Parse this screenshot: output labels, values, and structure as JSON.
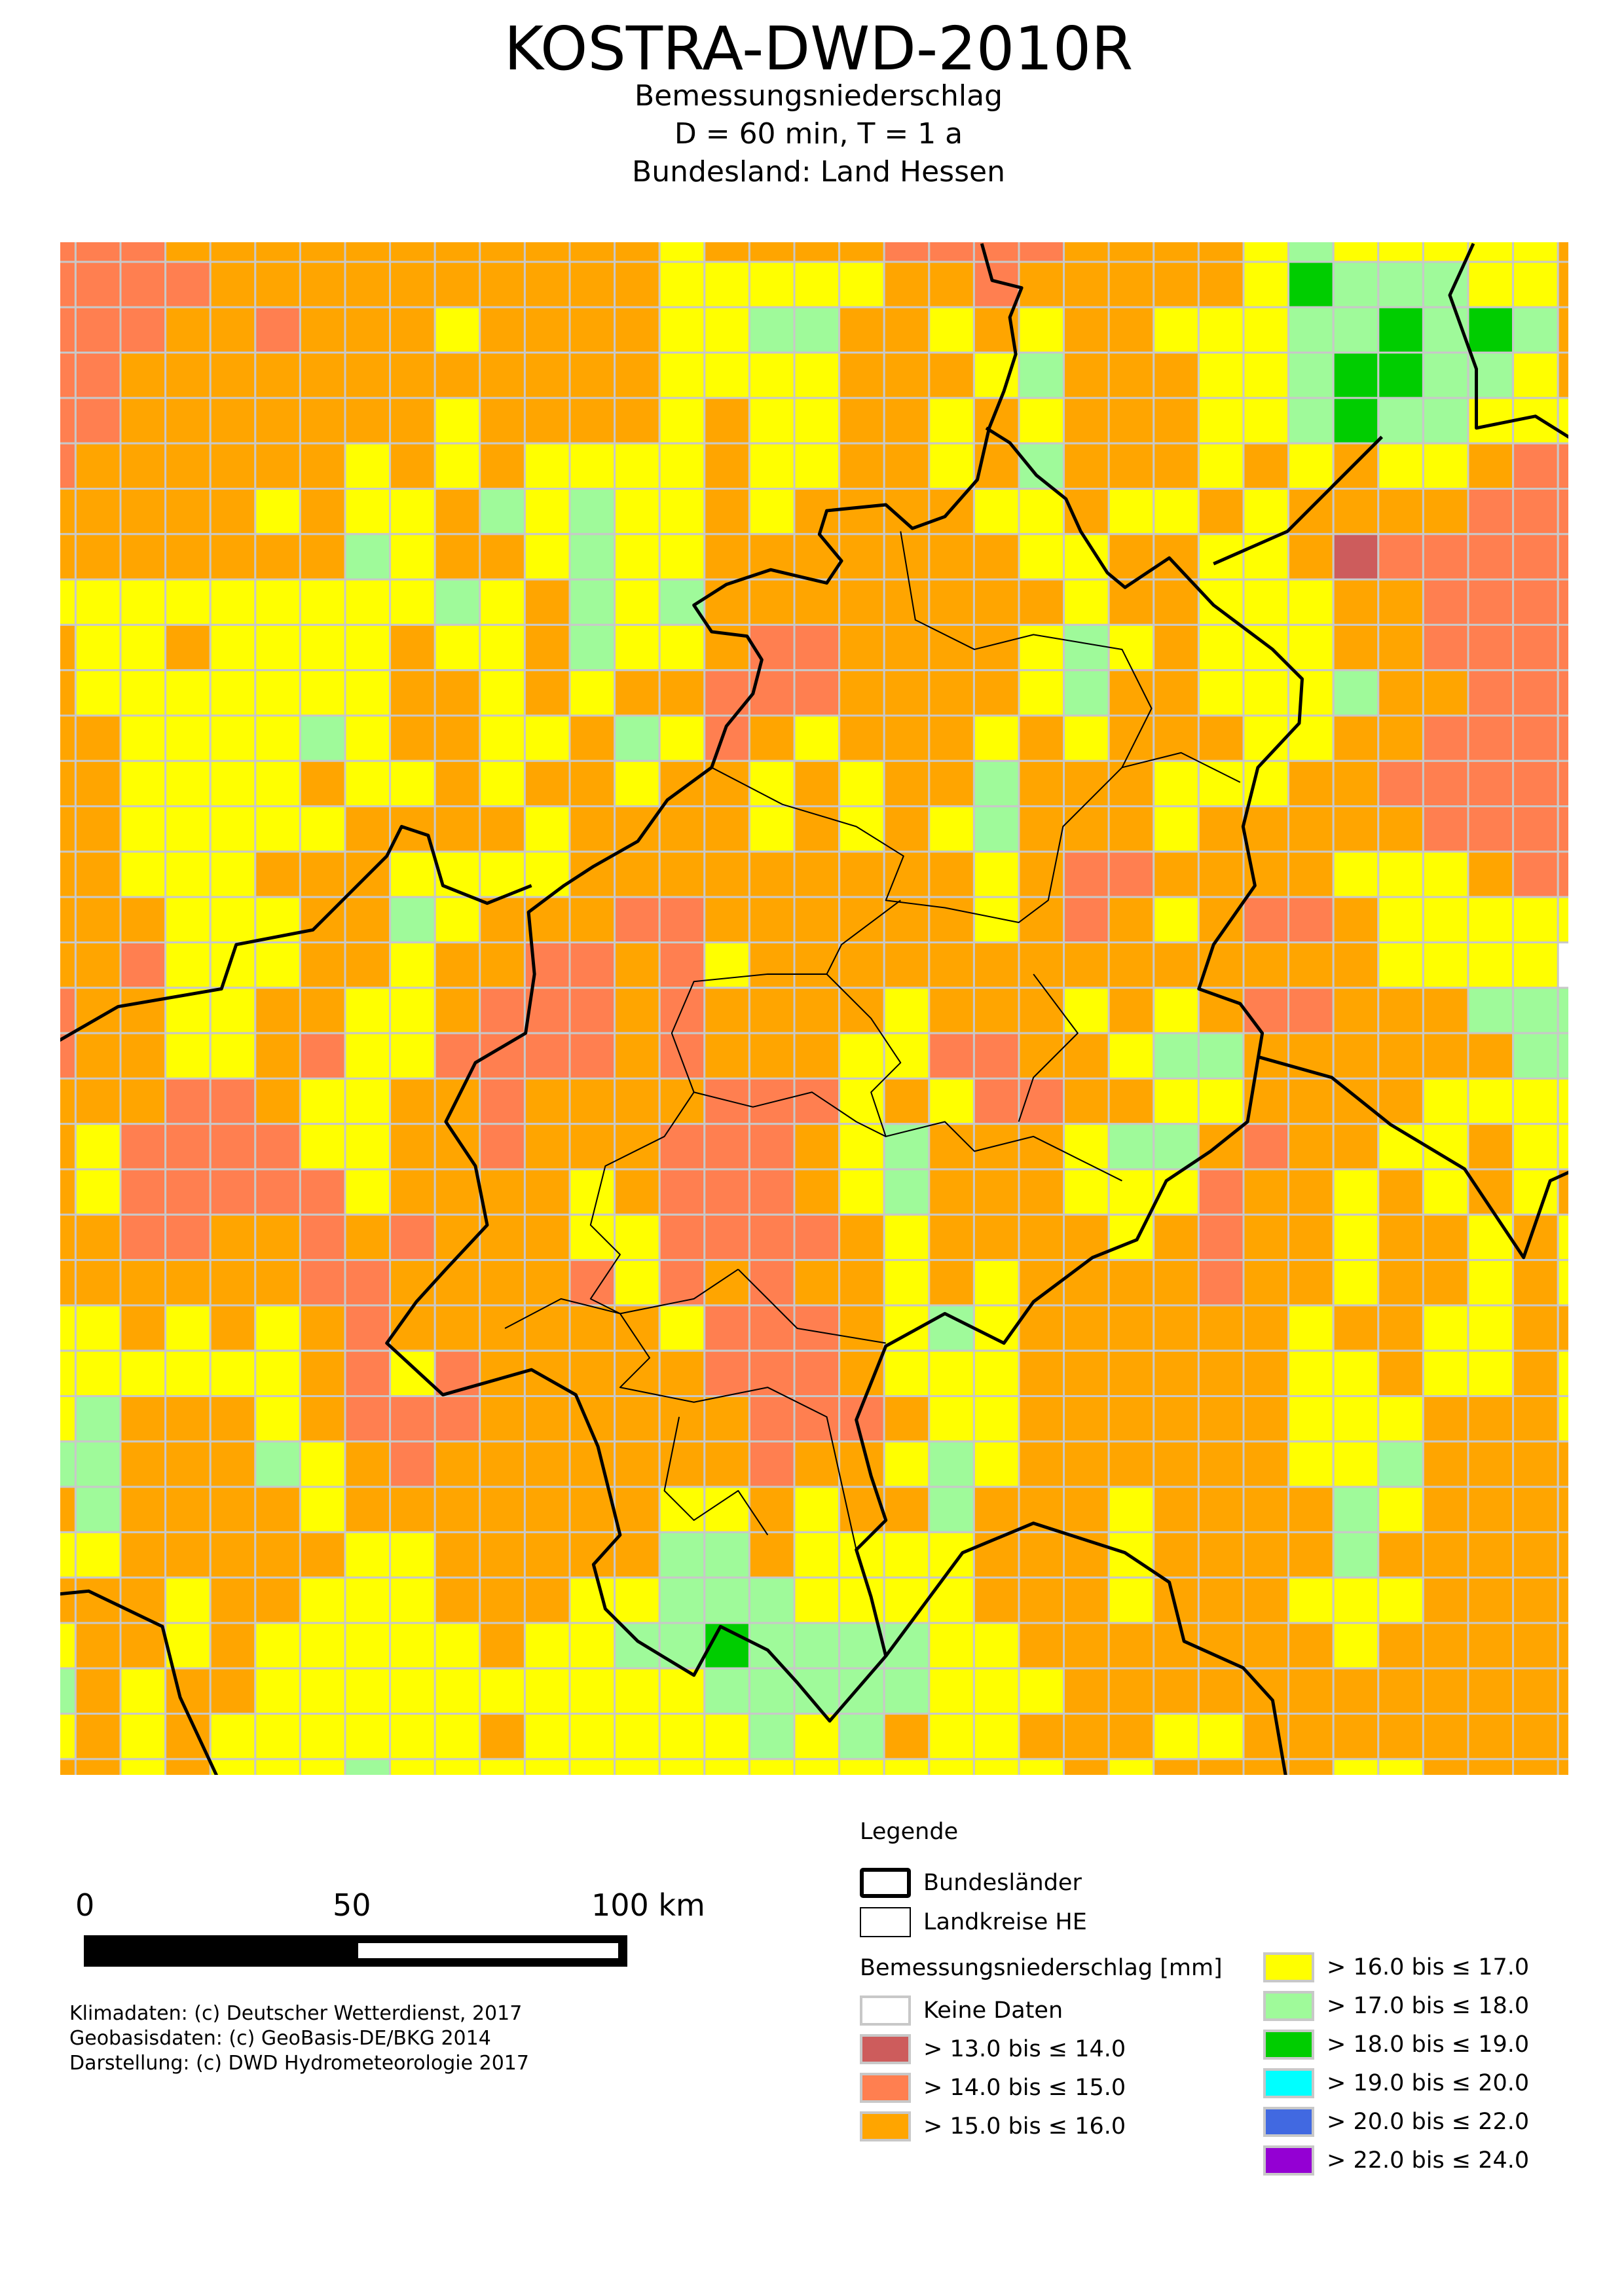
{
  "header": {
    "title": "KOSTRA-DWD-2010R",
    "subtitle1": "Bemessungsniederschlag",
    "subtitle2": "D = 60 min,  T = 1 a",
    "subtitle3": "Bundesland: Land Hessen"
  },
  "colors": {
    "none": "#ffffff",
    "r": "#cd5c5c",
    "o": "#ff7f50",
    "O": "#ffa500",
    "y": "#ffff00",
    "g": "#9ffa9a",
    "G": "#00cd00",
    "c": "#00ffff",
    "b": "#4169e1",
    "p": "#9400d3",
    "gridline": "#c8c8c8"
  },
  "map": {
    "legend_codes": "r = >13-14, o = >14-15, O = >15-16, y = >16-17, g = >17-18, G = >18-19",
    "grid_rows": [
      "oooOOOOOOOOOOOyOOOOooooOOOOygyyyyyO",
      "ooooOOOOOOOOOOyyyyyOOoOOOOOyGgggyyO",
      "oooOOoOOOyOOOOyyggOOyOyOOyyyggGgGgO",
      "ooOOOOOOOOOOOOyyyyOOOygOOOyygGGggyO",
      "ooOOOOOOOyOOOOyOyyOOyOyOOOyygGggyyy",
      "oOOOOOOyOyOyyyyOyyOOyOgOOOyOyOyyOoo",
      "OOOOOyOyyOgygyyOyOOOOyyOyyOyOOOOooo",
      "OOOOOOOgyOOygyyOOOOOOOyyOOyyOrooooo",
      "yyyyyyyyygyOgygOOOOOOOOyOOyyyOOoooo",
      "OyyOyyyyOyyOgyyOooOOOOygyOyyyOOoooo",
      "OyyyyyyyOOyOyOOoooOOOOygOOyyygOOooo",
      "OOyyyygyOOyyOgyoOyOOOyOyOOOyyOOoooo",
      "OOyyyyOyyOyOOyOOyOyOOgOOOyyyOOooooo",
      "OOyyyyyOOOOyOOOOyOyOygOOOyOOOOOoooo",
      "OOyyyOOOyyyyOOOOOOOOOyOooOOOOyyyOoo",
      "OOOyyyOOgyOOOooOOOOOOyOoOyOooOyyyyy",
      "OOoyyyOOyOOooOoyOOOOOOOOOOOOOOyyyy",
      "oOOyyOOyyOoooOoOOOOyOOOyOyOooOOOggg",
      "oOOyyOoyyooooOoOOOyyooOOyggOOOOOOgg",
      "OOOooOyyOOoOOOOoooyOyooOOyyOOOOyyyy",
      "OyooooyyOOoOOOoooOygOOOyggOoOOyyOyy",
      "OyoooooyOOOOyOoooOygOOOyyyoOOyOyOyO",
      "OOooOOoOoOOOyyooooOyOOOOyOoOOyOOyOy",
      "OOOOOOooOOOOoyoOoOOyOyOOOOoOOyOOyOy",
      "yyOyOyOoOOOOOOyoooOygyOOOOOOyOOyyOO",
      "yyyyyyOoyoOOOOOoooOyyyOOOOOOyyOyyOy",
      "ygOOOyOoooOOOOOOoooOyyOOOOOOyyyOOOy",
      "ggOOOgyOoOOOOOOOoOOygyOOOOOOyygOOOO",
      "OgOOOOyOOOOOOOyyOyOOgOOOyOOOOgyOOOO",
      "yyOOOOOyyOOOOOggOyyyyOOOyOOOOgOOOOO",
      "OOOyOOyyyOOOyygggyyyyOOOyOOOyyyOOOO",
      "yOOyOyyyyyOyyggGggggyyOOOOOOOyOOOOO",
      "gOyOOyyyyyyyyyygggggyyyOOOOOOOOOOOOO",
      "yOyOyyyyyyOyyyyygygOyyOOOyyOOOOOOOO",
      "OOyOyyygyyyyyyyyyyyyyyyOyOOOOyyOOOO"
    ]
  },
  "legend": {
    "title": "Legende",
    "bundeslaender": "Bundesländer",
    "landkreise": "Landkreise HE",
    "section_title": "Bemessungsniederschlag [mm]",
    "classes": [
      {
        "code": "none",
        "label": "Keine Daten"
      },
      {
        "code": "r",
        "label": "> 13.0 bis ≤ 14.0"
      },
      {
        "code": "o",
        "label": "> 14.0 bis ≤ 15.0"
      },
      {
        "code": "O",
        "label": "> 15.0 bis ≤ 16.0"
      },
      {
        "code": "y",
        "label": "> 16.0 bis ≤ 17.0"
      },
      {
        "code": "g",
        "label": "> 17.0 bis ≤ 18.0"
      },
      {
        "code": "G",
        "label": "> 18.0 bis ≤ 19.0"
      },
      {
        "code": "c",
        "label": "> 19.0 bis ≤ 20.0"
      },
      {
        "code": "b",
        "label": "> 20.0 bis ≤ 22.0"
      },
      {
        "code": "p",
        "label": "> 22.0 bis ≤ 24.0"
      }
    ]
  },
  "scalebar": {
    "label_0": "0",
    "label_50": "50",
    "label_100": "100 km"
  },
  "credits": {
    "line1": "Klimadaten: (c) Deutscher Wetterdienst, 2017",
    "line2": "Geobasisdaten: (c) GeoBasis-DE/BKG 2014",
    "line3": "Darstellung: (c) DWD Hydrometeorologie 2017"
  }
}
